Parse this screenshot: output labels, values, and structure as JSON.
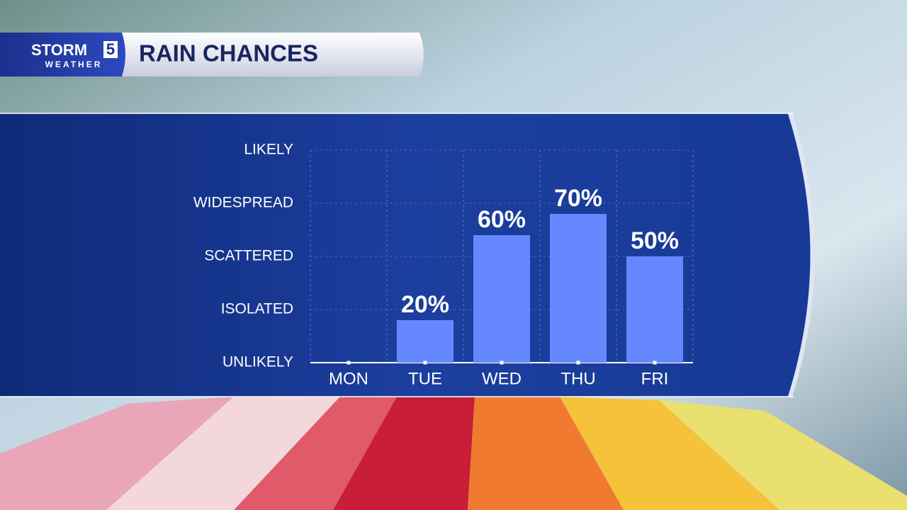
{
  "logo": {
    "brand": "STORM",
    "number": "5",
    "tagline": "WEATHER"
  },
  "chart_data": {
    "type": "bar",
    "title": "RAIN CHANCES",
    "categories": [
      "MON",
      "TUE",
      "WED",
      "THU",
      "FRI"
    ],
    "values": [
      0,
      20,
      60,
      70,
      50
    ],
    "value_labels": [
      null,
      "20%",
      "60%",
      "70%",
      "50%"
    ],
    "color": "#6688ff",
    "ylim": [
      0,
      100
    ],
    "yticks": [
      {
        "value": 0,
        "label": "UNLIKELY"
      },
      {
        "value": 25,
        "label": "ISOLATED"
      },
      {
        "value": 50,
        "label": "SCATTERED"
      },
      {
        "value": 75,
        "label": "WIDESPREAD"
      },
      {
        "value": 100,
        "label": "LIKELY"
      }
    ],
    "grid": true
  }
}
